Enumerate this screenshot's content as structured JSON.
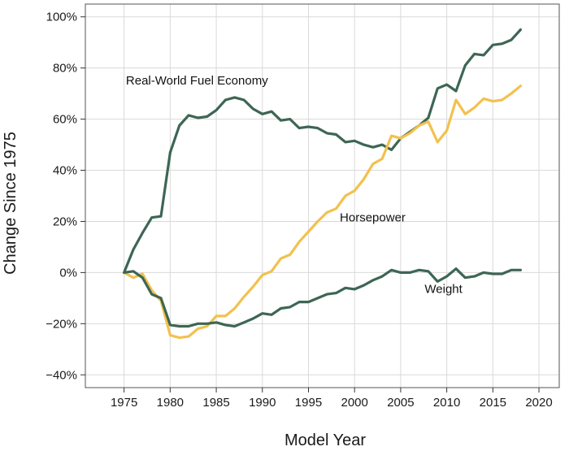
{
  "chart_data": {
    "type": "line",
    "title": "",
    "xlabel": "Model Year",
    "ylabel": "Change Since 1975",
    "xlim": [
      1970.8,
      2022.2
    ],
    "ylim": [
      -45,
      105
    ],
    "x_ticks": [
      1975,
      1980,
      1985,
      1990,
      1995,
      2000,
      2005,
      2010,
      2015,
      2020
    ],
    "y_ticks": [
      -40,
      -20,
      0,
      20,
      40,
      60,
      80,
      100
    ],
    "y_tick_labels": [
      "−40%",
      "−20%",
      "0%",
      "20%",
      "40%",
      "60%",
      "80%",
      "100%"
    ],
    "grid": true,
    "legend": "none",
    "colors": {
      "dark_series": "#3d6654",
      "light_series": "#f2c14e",
      "grid": "#d9d9d9",
      "frame": "#555555"
    },
    "series": [
      {
        "name": "Real-World Fuel Economy",
        "color": "#3d6654",
        "x": [
          1975,
          1976,
          1977,
          1978,
          1979,
          1980,
          1981,
          1982,
          1983,
          1984,
          1985,
          1986,
          1987,
          1988,
          1989,
          1990,
          1991,
          1992,
          1993,
          1994,
          1995,
          1996,
          1997,
          1998,
          1999,
          2000,
          2001,
          2002,
          2003,
          2004,
          2005,
          2006,
          2007,
          2008,
          2009,
          2010,
          2011,
          2012,
          2013,
          2014,
          2015,
          2016,
          2017,
          2018
        ],
        "values": [
          0,
          9,
          15.5,
          21.5,
          22,
          47,
          57.5,
          61.5,
          60.5,
          61,
          63.5,
          67.5,
          68.5,
          67.5,
          64,
          62,
          63,
          59.5,
          60,
          56.5,
          57,
          56.5,
          54.5,
          54,
          51,
          51.5,
          50,
          49,
          50,
          48,
          52.5,
          55,
          57.5,
          60.5,
          72,
          73.5,
          71,
          81,
          85.5,
          85,
          89,
          89.5,
          91,
          95
        ]
      },
      {
        "name": "Horsepower",
        "color": "#f2c14e",
        "x": [
          1975,
          1976,
          1977,
          1978,
          1979,
          1980,
          1981,
          1982,
          1983,
          1984,
          1985,
          1986,
          1987,
          1988,
          1989,
          1990,
          1991,
          1992,
          1993,
          1994,
          1995,
          1996,
          1997,
          1998,
          1999,
          2000,
          2001,
          2002,
          2003,
          2004,
          2005,
          2006,
          2007,
          2008,
          2009,
          2010,
          2011,
          2012,
          2013,
          2014,
          2015,
          2016,
          2017,
          2018
        ],
        "values": [
          0,
          -2,
          -0.5,
          -7,
          -11,
          -24.5,
          -25.5,
          -25,
          -22,
          -21,
          -17,
          -17,
          -14,
          -9.5,
          -5.5,
          -1,
          0.5,
          5.5,
          7,
          12,
          16,
          20,
          23.5,
          25,
          30,
          32,
          36.5,
          42.5,
          44.5,
          53.5,
          52.5,
          54.5,
          57.5,
          59,
          51,
          55.5,
          67.5,
          62,
          64.5,
          68,
          67,
          67.5,
          70,
          73
        ]
      },
      {
        "name": "Weight",
        "color": "#3d6654",
        "x": [
          1975,
          1976,
          1977,
          1978,
          1979,
          1980,
          1981,
          1982,
          1983,
          1984,
          1985,
          1986,
          1987,
          1988,
          1989,
          1990,
          1991,
          1992,
          1993,
          1994,
          1995,
          1996,
          1997,
          1998,
          1999,
          2000,
          2001,
          2002,
          2003,
          2004,
          2005,
          2006,
          2007,
          2008,
          2009,
          2010,
          2011,
          2012,
          2013,
          2014,
          2015,
          2016,
          2017,
          2018
        ],
        "values": [
          0,
          0.5,
          -2,
          -8.5,
          -10,
          -20.5,
          -21,
          -21,
          -20,
          -20,
          -19.5,
          -20.5,
          -21,
          -19.5,
          -18,
          -16,
          -16.5,
          -14,
          -13.5,
          -11.5,
          -11.5,
          -10,
          -8.5,
          -8,
          -6,
          -6.5,
          -5,
          -3,
          -1.5,
          1,
          0,
          0,
          1,
          0.5,
          -3.5,
          -1.5,
          1.5,
          -2,
          -1.5,
          0,
          -0.5,
          -0.5,
          1,
          1
        ]
      }
    ],
    "annotations": [
      {
        "text": "Real-World Fuel Economy",
        "x": 1975.2,
        "y": 73.5
      },
      {
        "text": "Horsepower",
        "x": 1998.4,
        "y": 20
      },
      {
        "text": "Weight",
        "x": 2007.6,
        "y": -8
      }
    ]
  }
}
